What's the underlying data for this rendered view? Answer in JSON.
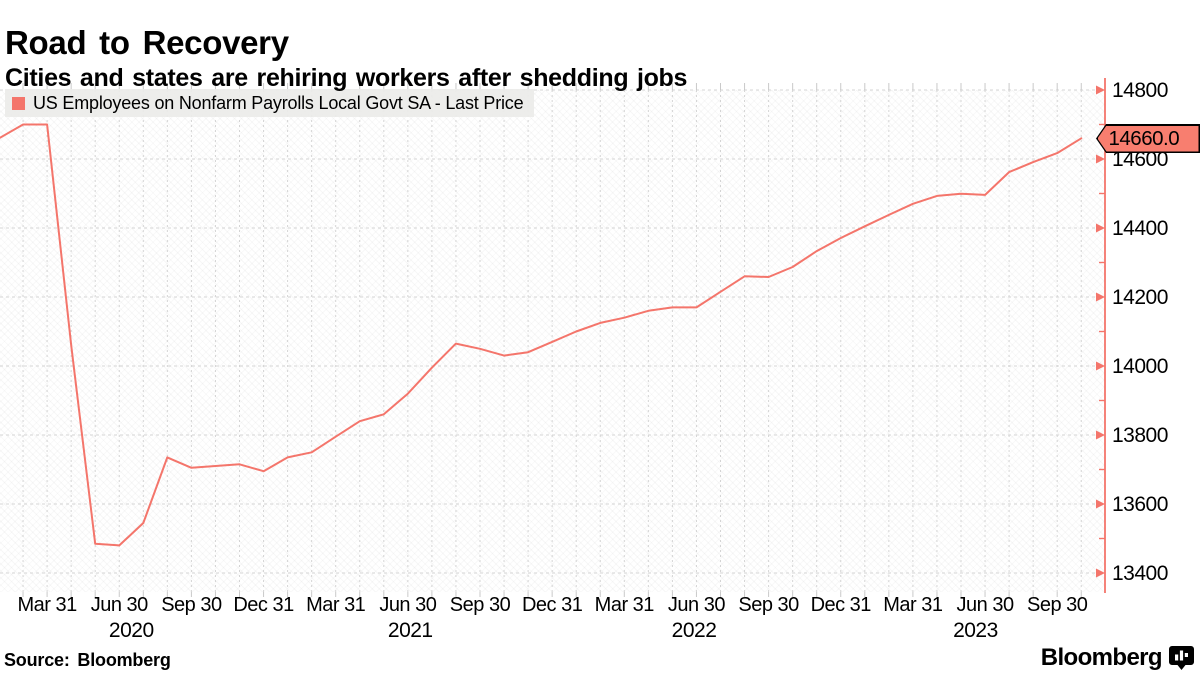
{
  "header": {
    "title": "Road to Recovery",
    "subtitle": "Cities and states are rehiring workers after shedding jobs"
  },
  "legend": {
    "label": "US Employees on Nonfarm Payrolls Local Govt SA - Last Price"
  },
  "price_tag": {
    "value": "14660.0"
  },
  "source": {
    "label": "Source: Bloomberg"
  },
  "brand": {
    "wordmark": "Bloomberg",
    "icon": "bloomberg-bars-icon"
  },
  "colors": {
    "accent": "#f4756b",
    "tag_bg": "#f87e6f",
    "grid": "#d4d4d4",
    "legend_bg": "#ecebE9",
    "text": "#000000"
  },
  "chart_data": {
    "type": "line",
    "title": "Road to Recovery",
    "subtitle": "Cities and states are rehiring workers after shedding jobs",
    "series_name": "US Employees on Nonfarm Payrolls Local Govt SA - Last Price",
    "legend_position": "top-left",
    "grid": "dashed",
    "y_axis_side": "right",
    "ylim": [
      13345,
      14820
    ],
    "y_ticks": [
      14800,
      14600,
      14400,
      14200,
      14000,
      13800,
      13600,
      13400
    ],
    "y_minor_tick_step": 100,
    "last_price": 14660.0,
    "x_months": [
      "2020-01",
      "2020-02",
      "2020-03",
      "2020-04",
      "2020-05",
      "2020-06",
      "2020-07",
      "2020-08",
      "2020-09",
      "2020-10",
      "2020-11",
      "2020-12",
      "2021-01",
      "2021-02",
      "2021-03",
      "2021-04",
      "2021-05",
      "2021-06",
      "2021-07",
      "2021-08",
      "2021-09",
      "2021-10",
      "2021-11",
      "2021-12",
      "2022-01",
      "2022-02",
      "2022-03",
      "2022-04",
      "2022-05",
      "2022-06",
      "2022-07",
      "2022-08",
      "2022-09",
      "2022-10",
      "2022-11",
      "2022-12",
      "2023-01",
      "2023-02",
      "2023-03",
      "2023-04",
      "2023-05",
      "2023-06",
      "2023-07",
      "2023-08",
      "2023-09",
      "2023-10"
    ],
    "values": [
      14660,
      14700,
      14700,
      14060,
      13485,
      13480,
      13545,
      13735,
      13705,
      13710,
      13715,
      13695,
      13735,
      13750,
      13795,
      13840,
      13860,
      13920,
      13995,
      14065,
      14050,
      14030,
      14040,
      14070,
      14100,
      14125,
      14140,
      14160,
      14170,
      14170,
      14215,
      14260,
      14258,
      14287,
      14333,
      14371,
      14405,
      14438,
      14470,
      14493,
      14499,
      14496,
      14562,
      14591,
      14617,
      14660
    ],
    "x_ticks": [
      {
        "label": "Mar 31",
        "m": 2
      },
      {
        "label": "Jun 30",
        "m": 5
      },
      {
        "label": "Sep 30",
        "m": 8
      },
      {
        "label": "Dec 31",
        "m": 11
      },
      {
        "label": "Mar 31",
        "m": 14
      },
      {
        "label": "Jun 30",
        "m": 17
      },
      {
        "label": "Sep 30",
        "m": 20
      },
      {
        "label": "Dec 31",
        "m": 23
      },
      {
        "label": "Mar 31",
        "m": 26
      },
      {
        "label": "Jun 30",
        "m": 29
      },
      {
        "label": "Sep 30",
        "m": 32
      },
      {
        "label": "Dec 31",
        "m": 35
      },
      {
        "label": "Mar 31",
        "m": 38
      },
      {
        "label": "Jun 30",
        "m": 41
      },
      {
        "label": "Sep 30",
        "m": 44
      }
    ],
    "year_labels": [
      {
        "label": "2020",
        "m": 5.5
      },
      {
        "label": "2021",
        "m": 17.1
      },
      {
        "label": "2022",
        "m": 28.9
      },
      {
        "label": "2023",
        "m": 40.6
      }
    ]
  }
}
